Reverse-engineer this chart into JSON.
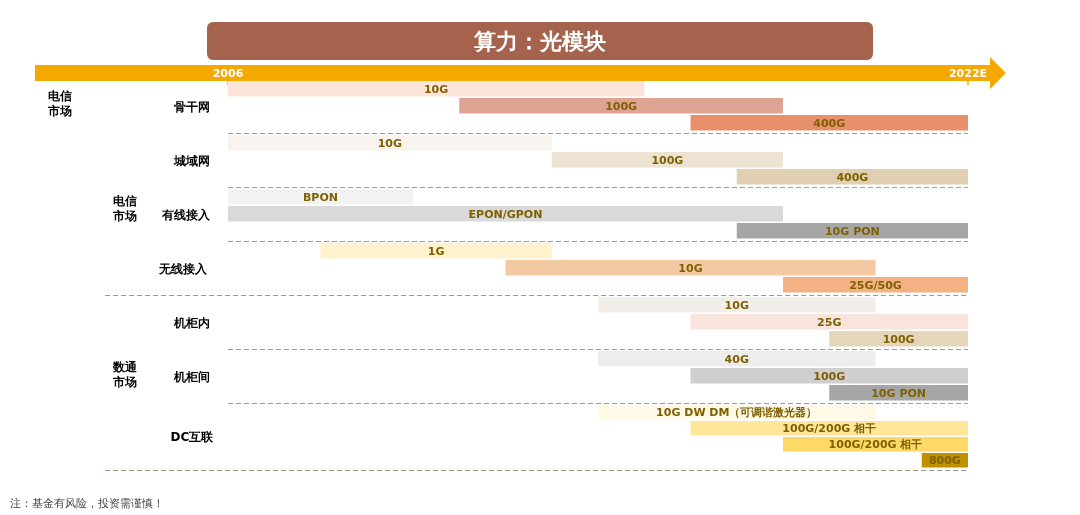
{
  "chart_data": {
    "type": "bar",
    "orientation": "horizontal",
    "title": "算力：光模块",
    "categories": [
      "10G",
      "100G",
      "400G",
      "10G",
      "100G",
      "400G",
      "BPON",
      "EPON/GPON",
      "10G PON",
      "1G",
      "10G",
      "25G/50G",
      "10G",
      "25G",
      "100G",
      "40G",
      "100G",
      "10G PON",
      "10G DW DM（可调谐激光器）",
      "100G/200G 相干",
      "100G/200G 相干",
      "800G"
    ],
    "base": [
      2006,
      2011,
      2016,
      2006,
      2013,
      2017,
      2006,
      2006,
      2017,
      2008,
      2012,
      2018,
      2014,
      2016,
      2019,
      2014,
      2016,
      2019,
      2014,
      2016,
      2018,
      2021
    ],
    "values": [
      9,
      7,
      6,
      7,
      5,
      5,
      4,
      12,
      5,
      5,
      8,
      4,
      6,
      6,
      3,
      6,
      6,
      3,
      6,
      6,
      4,
      1
    ],
    "colors": [
      "#fbe5d9",
      "#dfa393",
      "#e8906c",
      "#f8f3ec",
      "#ece3d3",
      "#e0cfb0",
      "#f2f2f2",
      "#d9d9d9",
      "#a6a6a6",
      "#fff2cc",
      "#f3c9a3",
      "#f4b183",
      "#f2efea",
      "#f8e4dc",
      "#e6d6b9",
      "#ededed",
      "#d0cece",
      "#a6a6a6",
      "#fff9e6",
      "#ffe699",
      "#ffd966",
      "#bf9000"
    ],
    "xlim": [
      2006,
      2022
    ],
    "xticks": [
      2006,
      {
        "value": 2022,
        "label": "2022E"
      }
    ],
    "annotations": [
      "电信市场",
      "骨干网",
      "电信市场",
      "城域网",
      "有线接入",
      "无线接入",
      "数通市场",
      "机柜内",
      "机柜间",
      "DC互联",
      "注：基金有风险，投资需谨慎！"
    ]
  }
}
